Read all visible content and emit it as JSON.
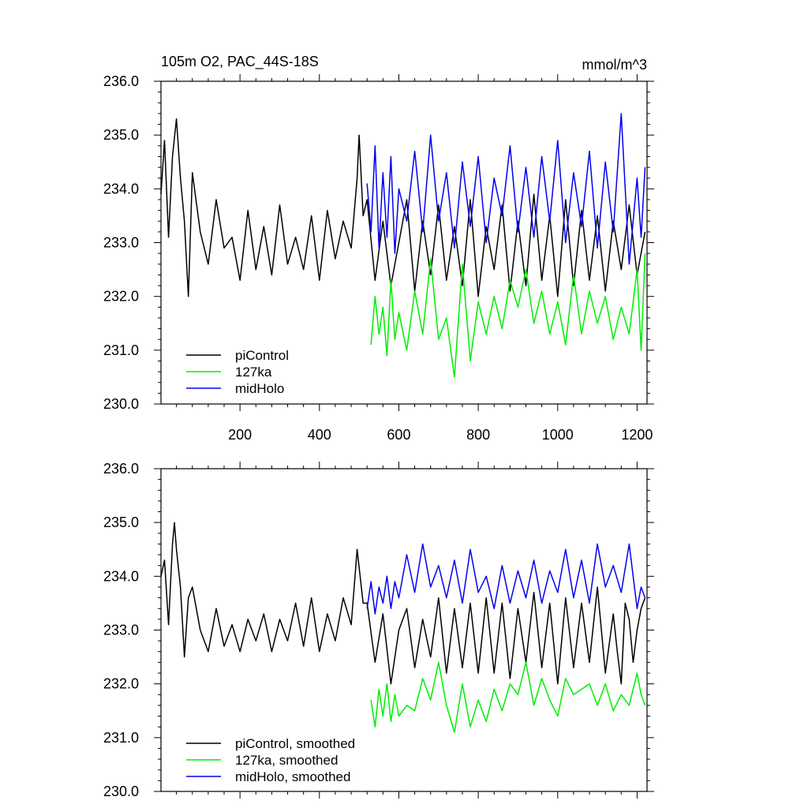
{
  "chart_data": [
    {
      "type": "line",
      "title": "105m O2, PAC_44S-18S",
      "units": "mmol/m^3",
      "xlim": [
        1,
        1225
      ],
      "ylim": [
        230,
        236
      ],
      "y_ticks": [
        230,
        231,
        232,
        233,
        234,
        235,
        236
      ],
      "y_tick_labels": [
        "230.0",
        "231.0",
        "232.0",
        "233.0",
        "234.0",
        "235.0",
        "236.0"
      ],
      "x_ticks": [
        200,
        400,
        600,
        800,
        1000,
        1200
      ],
      "x_tick_labels": [
        "200",
        "400",
        "600",
        "800",
        "1000",
        "1200"
      ],
      "legend_position": "bottom-left",
      "series": [
        {
          "name": "piControl",
          "color": "#000000",
          "x": [
            1,
            10,
            20,
            30,
            40,
            50,
            60,
            70,
            80,
            100,
            120,
            140,
            160,
            180,
            200,
            220,
            240,
            260,
            280,
            300,
            320,
            340,
            360,
            380,
            400,
            420,
            440,
            460,
            480,
            495,
            500,
            510,
            520,
            540,
            560,
            580,
            600,
            620,
            640,
            660,
            680,
            700,
            720,
            740,
            760,
            780,
            800,
            820,
            840,
            860,
            880,
            900,
            920,
            940,
            960,
            980,
            1000,
            1020,
            1040,
            1060,
            1080,
            1100,
            1120,
            1140,
            1160,
            1180,
            1200,
            1220
          ],
          "y": [
            233.9,
            234.9,
            233.1,
            234.6,
            235.3,
            234.2,
            233.4,
            232.0,
            234.3,
            233.2,
            232.6,
            233.8,
            232.9,
            233.1,
            232.3,
            233.6,
            232.5,
            233.3,
            232.4,
            233.7,
            232.6,
            233.1,
            232.5,
            233.5,
            232.3,
            233.6,
            232.7,
            233.4,
            232.9,
            234.2,
            235.0,
            233.5,
            233.8,
            232.3,
            233.4,
            232.2,
            233.0,
            233.8,
            232.1,
            233.4,
            232.4,
            233.7,
            232.3,
            233.3,
            232.2,
            233.8,
            232.0,
            233.3,
            232.5,
            233.7,
            232.1,
            233.4,
            232.2,
            233.9,
            232.3,
            233.5,
            232.0,
            233.8,
            232.2,
            233.6,
            232.3,
            233.5,
            232.1,
            233.4,
            232.5,
            233.7,
            232.4,
            233.2
          ]
        },
        {
          "name": "127ka",
          "color": "#00ee00",
          "x": [
            530,
            540,
            550,
            560,
            570,
            580,
            590,
            600,
            620,
            640,
            660,
            680,
            700,
            720,
            740,
            760,
            780,
            800,
            820,
            840,
            860,
            880,
            900,
            920,
            940,
            960,
            980,
            1000,
            1020,
            1040,
            1060,
            1080,
            1100,
            1120,
            1140,
            1160,
            1180,
            1200,
            1210,
            1220
          ],
          "y": [
            231.1,
            232.0,
            231.3,
            231.8,
            230.9,
            232.3,
            231.2,
            231.7,
            231.0,
            232.1,
            231.3,
            232.7,
            231.2,
            231.6,
            230.5,
            232.6,
            230.8,
            231.9,
            231.3,
            232.0,
            231.4,
            232.3,
            231.8,
            232.5,
            231.5,
            232.1,
            231.3,
            231.9,
            231.1,
            232.4,
            231.3,
            232.1,
            231.5,
            232.0,
            231.2,
            231.8,
            231.3,
            232.5,
            231.0,
            232.8
          ]
        },
        {
          "name": "midHolo",
          "color": "#0000ee",
          "x": [
            520,
            530,
            540,
            550,
            560,
            570,
            580,
            590,
            600,
            620,
            640,
            660,
            680,
            700,
            720,
            740,
            760,
            780,
            800,
            820,
            840,
            860,
            880,
            900,
            920,
            940,
            960,
            980,
            1000,
            1020,
            1040,
            1060,
            1080,
            1100,
            1120,
            1140,
            1160,
            1180,
            1200,
            1210,
            1220
          ],
          "y": [
            234.1,
            233.2,
            234.8,
            232.9,
            234.3,
            233.1,
            234.6,
            232.8,
            234.0,
            233.4,
            234.7,
            233.2,
            235.0,
            233.4,
            234.3,
            232.9,
            234.5,
            233.3,
            234.6,
            233.0,
            234.2,
            233.5,
            234.8,
            233.2,
            234.4,
            233.1,
            234.6,
            233.4,
            234.9,
            233.0,
            234.3,
            233.3,
            234.7,
            232.9,
            234.5,
            233.2,
            235.4,
            232.6,
            234.2,
            233.1,
            234.4
          ]
        }
      ]
    },
    {
      "type": "line",
      "xlim": [
        1,
        1225
      ],
      "ylim": [
        230,
        236
      ],
      "y_ticks": [
        230,
        231,
        232,
        233,
        234,
        235,
        236
      ],
      "y_tick_labels": [
        "230.0",
        "231.0",
        "232.0",
        "233.0",
        "234.0",
        "235.0",
        "236.0"
      ],
      "x_ticks": [
        200,
        400,
        600,
        800,
        1000,
        1200
      ],
      "legend_position": "bottom-left",
      "series": [
        {
          "name": "piControl, smoothed",
          "color": "#000000",
          "x": [
            1,
            10,
            20,
            30,
            35,
            40,
            50,
            60,
            70,
            80,
            100,
            120,
            140,
            160,
            180,
            200,
            220,
            240,
            260,
            280,
            300,
            320,
            340,
            360,
            380,
            400,
            420,
            440,
            460,
            480,
            495,
            510,
            520,
            540,
            560,
            580,
            600,
            620,
            640,
            660,
            680,
            700,
            720,
            740,
            760,
            780,
            800,
            820,
            840,
            860,
            880,
            900,
            920,
            940,
            960,
            980,
            1000,
            1020,
            1040,
            1060,
            1080,
            1100,
            1120,
            1140,
            1150,
            1160,
            1170,
            1180,
            1190,
            1200,
            1210,
            1220
          ],
          "y": [
            234.0,
            234.3,
            233.1,
            234.6,
            235.0,
            234.5,
            233.8,
            232.5,
            233.6,
            233.8,
            233.0,
            232.6,
            233.4,
            232.7,
            233.1,
            232.6,
            233.2,
            232.8,
            233.3,
            232.6,
            233.2,
            232.8,
            233.5,
            232.7,
            233.6,
            232.6,
            233.3,
            232.8,
            233.6,
            233.1,
            234.5,
            233.5,
            233.5,
            232.4,
            233.3,
            232.0,
            233.0,
            233.4,
            232.3,
            233.2,
            232.5,
            233.6,
            232.2,
            233.4,
            232.3,
            233.5,
            232.2,
            233.6,
            232.2,
            233.5,
            232.1,
            233.4,
            232.4,
            233.7,
            232.3,
            233.5,
            232.0,
            233.6,
            232.3,
            233.5,
            232.4,
            233.8,
            232.2,
            233.3,
            232.6,
            232.0,
            233.5,
            233.2,
            232.4,
            233.0,
            233.4,
            233.6
          ]
        },
        {
          "name": "127ka, smoothed",
          "color": "#00ee00",
          "x": [
            530,
            540,
            550,
            560,
            570,
            580,
            590,
            600,
            620,
            640,
            660,
            680,
            700,
            720,
            740,
            760,
            780,
            800,
            820,
            840,
            860,
            880,
            900,
            920,
            940,
            960,
            980,
            1000,
            1020,
            1040,
            1060,
            1080,
            1100,
            1120,
            1140,
            1160,
            1180,
            1200,
            1210,
            1220
          ],
          "y": [
            231.7,
            231.2,
            231.9,
            231.4,
            232.0,
            231.3,
            231.8,
            231.4,
            231.6,
            231.5,
            232.1,
            231.7,
            232.4,
            231.6,
            231.1,
            232.0,
            231.2,
            231.7,
            231.3,
            231.9,
            231.5,
            232.0,
            231.8,
            232.4,
            231.6,
            232.1,
            231.7,
            231.4,
            232.1,
            231.8,
            231.9,
            232.0,
            231.6,
            232.0,
            231.5,
            231.8,
            231.6,
            232.2,
            231.8,
            231.6
          ]
        },
        {
          "name": "midHolo, smoothed",
          "color": "#0000ee",
          "x": [
            520,
            530,
            540,
            550,
            560,
            570,
            580,
            590,
            600,
            620,
            640,
            660,
            680,
            700,
            720,
            740,
            760,
            780,
            800,
            820,
            840,
            860,
            880,
            900,
            920,
            940,
            960,
            980,
            1000,
            1020,
            1040,
            1060,
            1080,
            1100,
            1120,
            1140,
            1160,
            1180,
            1200,
            1210,
            1220
          ],
          "y": [
            233.4,
            233.9,
            233.3,
            233.8,
            233.5,
            234.0,
            233.4,
            233.9,
            233.6,
            234.4,
            233.7,
            234.6,
            233.8,
            234.2,
            233.6,
            234.3,
            233.5,
            234.5,
            233.7,
            234.0,
            233.4,
            234.2,
            233.5,
            234.1,
            233.6,
            234.3,
            233.5,
            234.1,
            233.7,
            234.5,
            233.6,
            234.3,
            233.5,
            234.6,
            233.8,
            234.2,
            233.7,
            234.6,
            233.4,
            233.8,
            233.6
          ]
        }
      ]
    }
  ]
}
